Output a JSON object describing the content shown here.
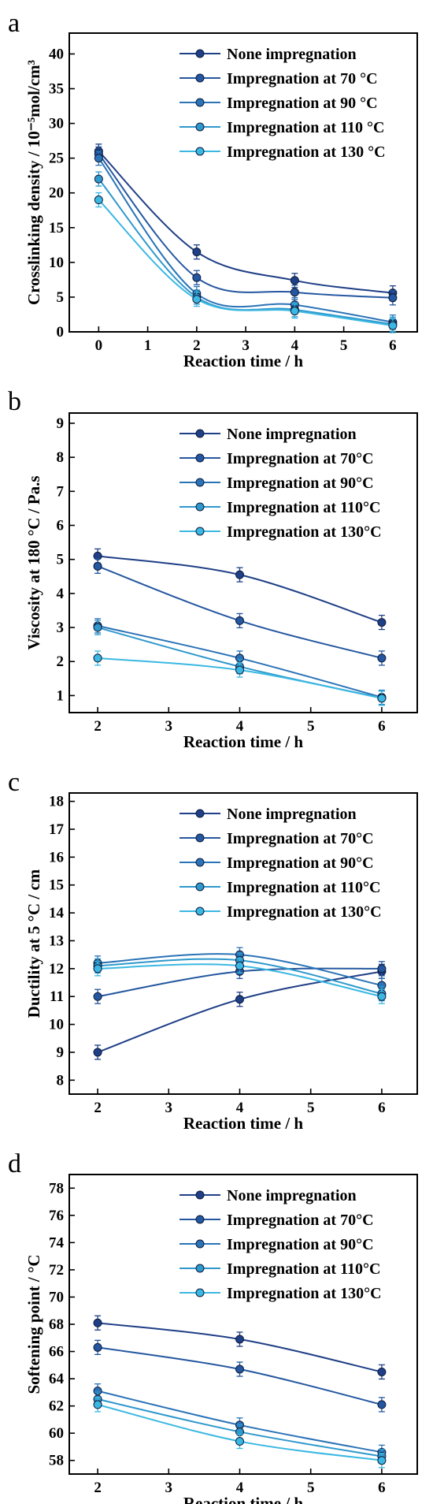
{
  "palette": [
    "#1f3f86",
    "#24579f",
    "#2a73b7",
    "#2f98cc",
    "#3bb8e2"
  ],
  "chart_data": [
    {
      "type": "line",
      "panel": "a",
      "xlabel": "Reaction time / h",
      "ylabel": "Crosslinking density / 10⁻⁵mol/cm³",
      "xlim": [
        -0.6,
        6.5
      ],
      "ylim": [
        0,
        43
      ],
      "xticks": [
        0,
        1,
        2,
        3,
        4,
        5,
        6
      ],
      "yticks": [
        0,
        5,
        10,
        15,
        20,
        25,
        30,
        35,
        40
      ],
      "x": [
        0,
        2,
        4,
        6
      ],
      "legend_position": "top-right",
      "series": [
        {
          "name": "None impregnation",
          "values": [
            26,
            11.5,
            7.4,
            5.6
          ]
        },
        {
          "name": "Impregnation at 70 °C",
          "values": [
            25.6,
            7.8,
            5.7,
            4.9
          ]
        },
        {
          "name": "Impregnation at 90 °C",
          "values": [
            25,
            5.5,
            3.9,
            1.4
          ]
        },
        {
          "name": "Impregnation at 110 °C",
          "values": [
            22,
            5,
            3.2,
            1.1
          ]
        },
        {
          "name": "Impregnation at 130 °C",
          "values": [
            19,
            4.7,
            3,
            0.9
          ]
        }
      ]
    },
    {
      "type": "line",
      "panel": "b",
      "xlabel": "Reaction time / h",
      "ylabel": "Viscosity at 180 °C / Pa.s",
      "xlim": [
        1.6,
        6.5
      ],
      "ylim": [
        0.5,
        9.3
      ],
      "xticks": [
        2,
        3,
        4,
        5,
        6
      ],
      "yticks": [
        1,
        2,
        3,
        4,
        5,
        6,
        7,
        8,
        9
      ],
      "x": [
        2,
        4,
        6
      ],
      "legend_position": "top-right",
      "series": [
        {
          "name": "None impregnation",
          "values": [
            5.1,
            4.55,
            3.15
          ]
        },
        {
          "name": "Impregnation at 70°C",
          "values": [
            4.8,
            3.2,
            2.1
          ]
        },
        {
          "name": "Impregnation at 90°C",
          "values": [
            3.05,
            2.1,
            0.95
          ]
        },
        {
          "name": "Impregnation at 110°C",
          "values": [
            3,
            1.85,
            0.93
          ]
        },
        {
          "name": "Impregnation at 130°C",
          "values": [
            2.1,
            1.75,
            0.92
          ]
        }
      ]
    },
    {
      "type": "line",
      "panel": "c",
      "xlabel": "Reaction time / h",
      "ylabel": "Ductility at 5 °C / cm",
      "xlim": [
        1.6,
        6.5
      ],
      "ylim": [
        7.5,
        18.3
      ],
      "xticks": [
        2,
        3,
        4,
        5,
        6
      ],
      "yticks": [
        8,
        9,
        10,
        11,
        12,
        13,
        14,
        15,
        16,
        17,
        18
      ],
      "x": [
        2,
        4,
        6
      ],
      "legend_position": "top-right",
      "series": [
        {
          "name": "None impregnation",
          "values": [
            9,
            10.9,
            11.9
          ]
        },
        {
          "name": "Impregnation at 70°C",
          "values": [
            11,
            11.9,
            12
          ]
        },
        {
          "name": "Impregnation at 90°C",
          "values": [
            12.2,
            12.5,
            11.4
          ]
        },
        {
          "name": "Impregnation at 110°C",
          "values": [
            12.1,
            12.3,
            11.1
          ]
        },
        {
          "name": "Impregnation at 130°C",
          "values": [
            12,
            12.1,
            11
          ]
        }
      ]
    },
    {
      "type": "line",
      "panel": "d",
      "xlabel": "Reaction time / h",
      "ylabel": "Softening point / °C",
      "xlim": [
        1.6,
        6.5
      ],
      "ylim": [
        57,
        79
      ],
      "xticks": [
        2,
        3,
        4,
        5,
        6
      ],
      "yticks": [
        58,
        60,
        62,
        64,
        66,
        68,
        70,
        72,
        74,
        76,
        78
      ],
      "x": [
        2,
        4,
        6
      ],
      "legend_position": "top-right",
      "series": [
        {
          "name": "None impregnation",
          "values": [
            68.1,
            66.9,
            64.5
          ]
        },
        {
          "name": "Impregnation at 70°C",
          "values": [
            66.3,
            64.7,
            62.1
          ]
        },
        {
          "name": "Impregnation at 90°C",
          "values": [
            63.1,
            60.6,
            58.6
          ]
        },
        {
          "name": "Impregnation at 110°C",
          "values": [
            62.5,
            60.1,
            58.3
          ]
        },
        {
          "name": "Impregnation at 130°C",
          "values": [
            62.1,
            59.4,
            58
          ]
        }
      ]
    }
  ]
}
